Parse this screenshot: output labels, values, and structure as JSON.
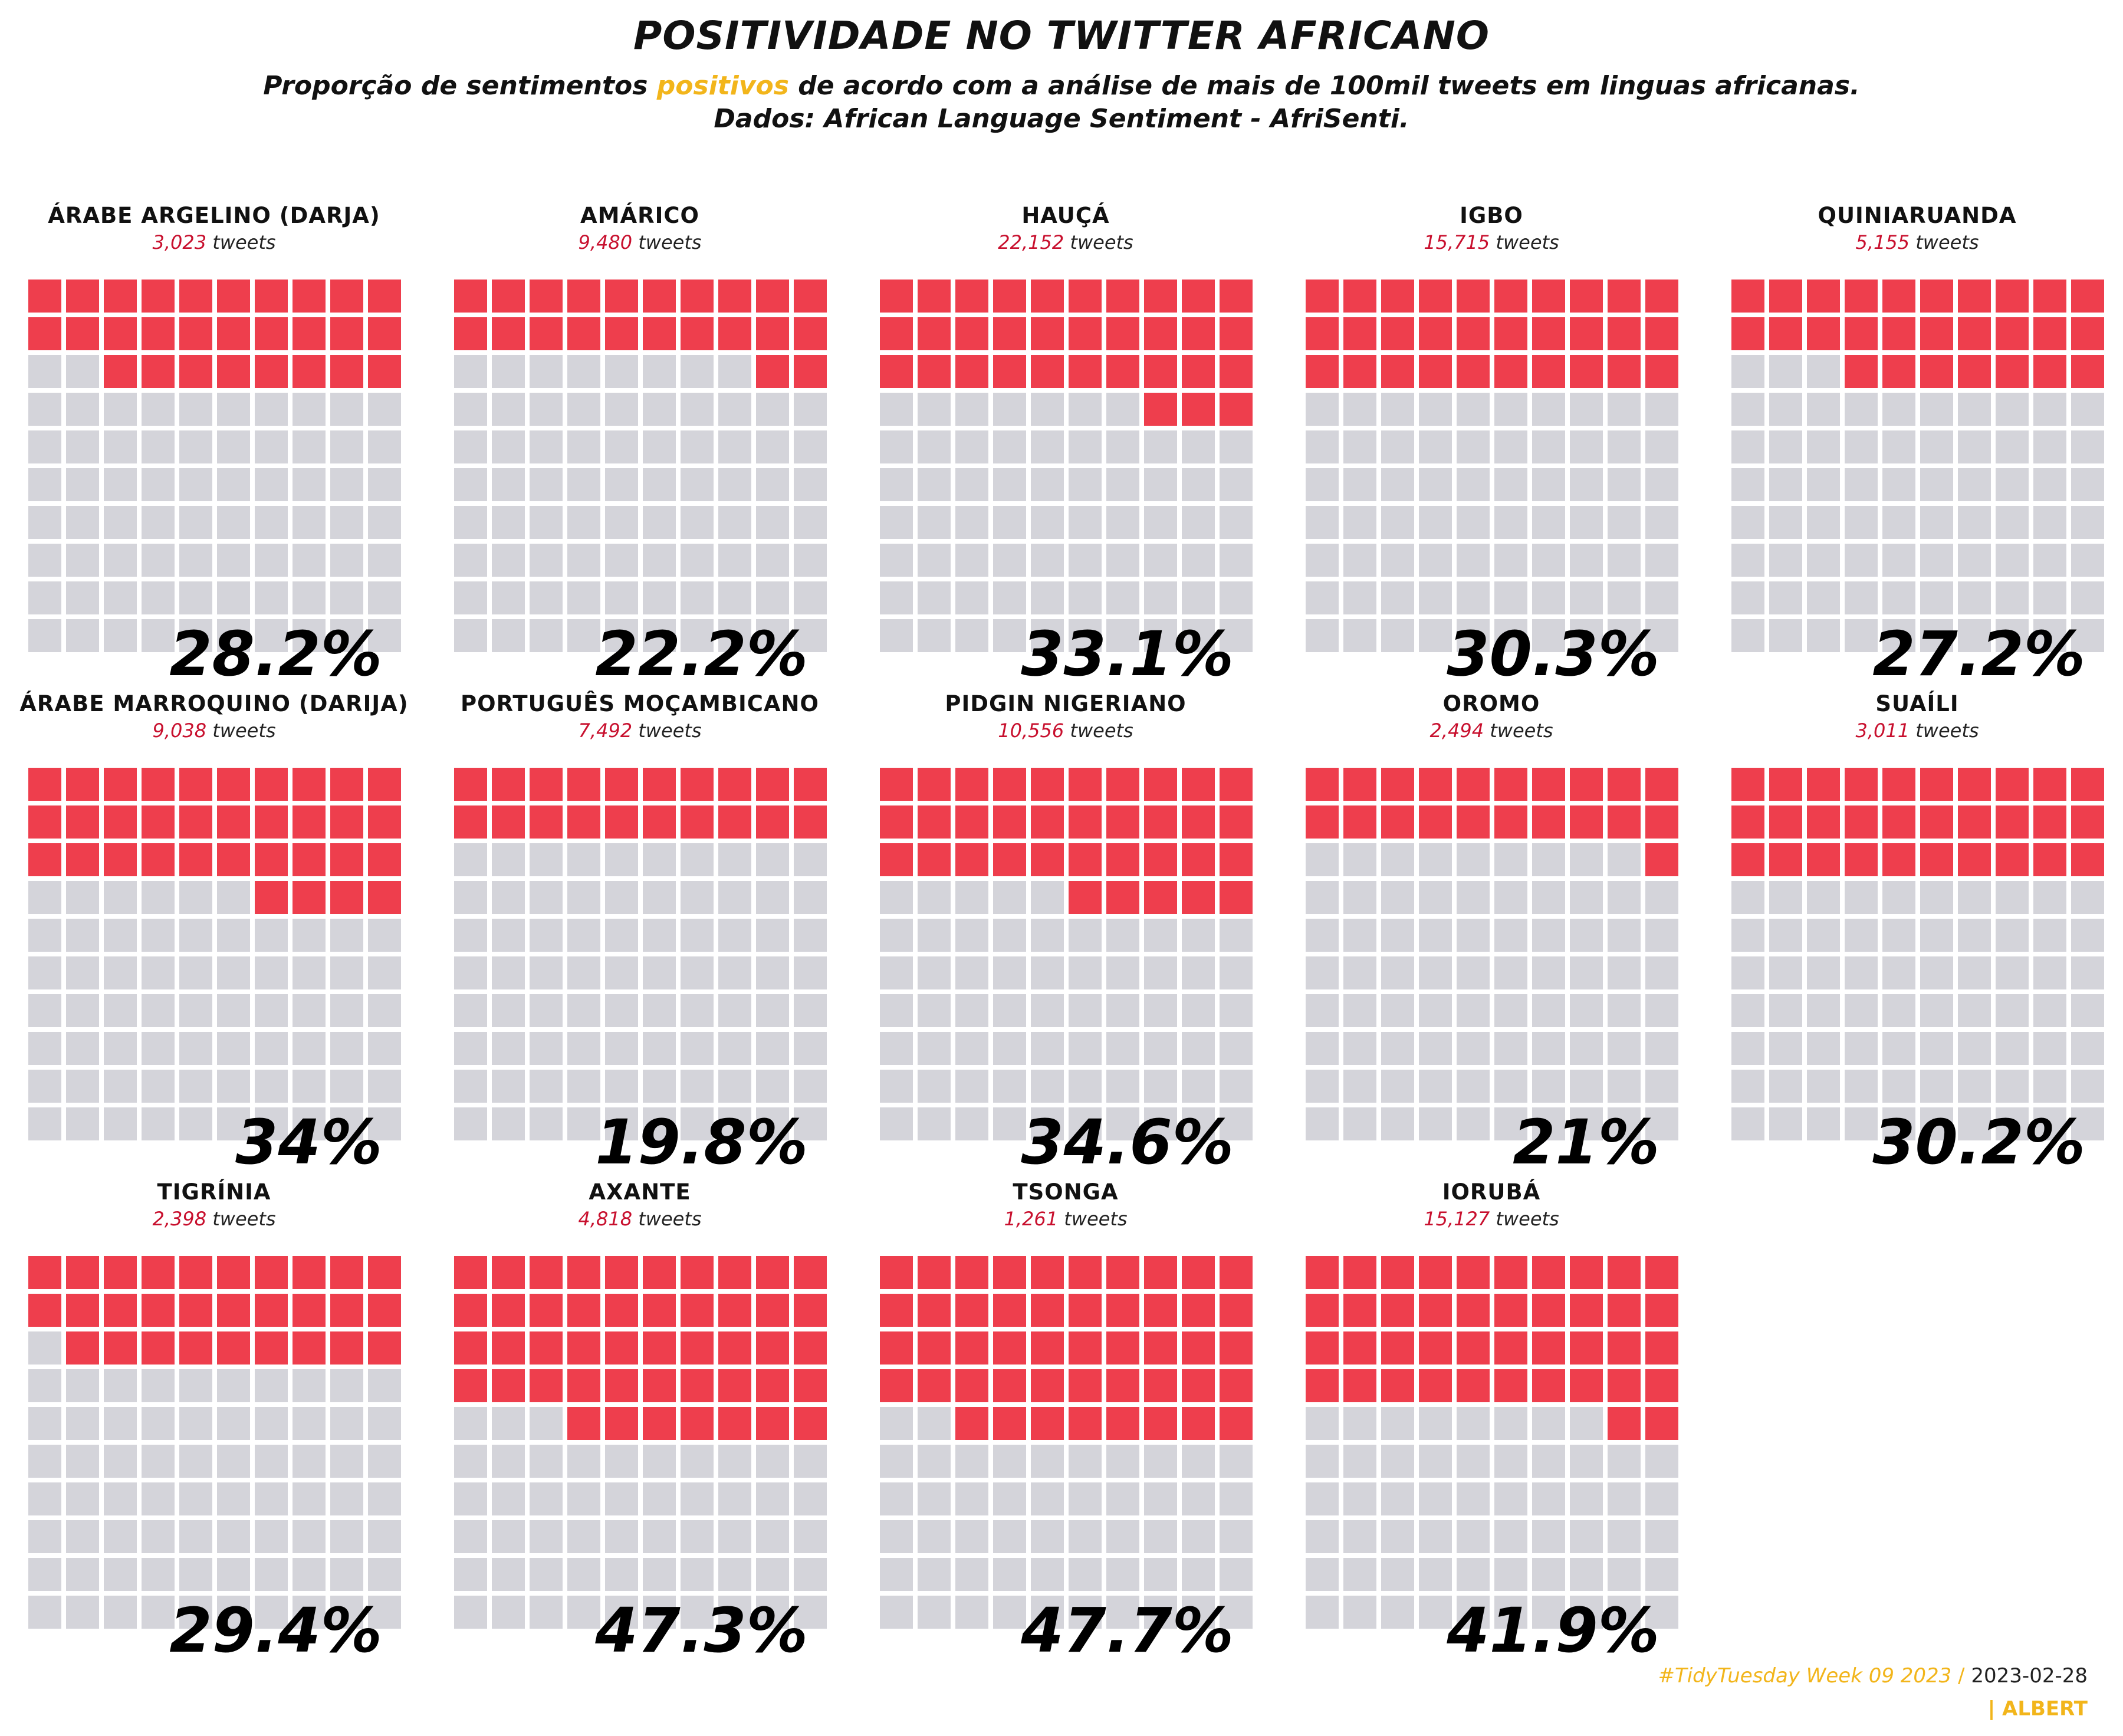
{
  "title": "POSITIVIDADE NO TWITTER AFRICANO",
  "subtitle": {
    "before": "Proporção de sentimentos ",
    "highlight": "positivos",
    "after": " de acordo com a análise de mais de 100mil tweets em linguas africanas.",
    "line2": "Dados: African Language Sentiment - AfriSenti."
  },
  "colors": {
    "positive": "#ee3e4d",
    "other": "#d4d4da",
    "highlight": "#f2b51b",
    "count": "#c8102e"
  },
  "tweets_unit": "tweets",
  "footer": {
    "hashtag": "#TidyTuesday Week 09 2023",
    "separator": "/",
    "date": "2023-02-28",
    "author": "| ALBERT"
  },
  "chart_data": {
    "type": "waffle",
    "grid": "10x10",
    "panels": [
      {
        "language": "ÁRABE ARGELINO (DARJA)",
        "tweets": "3,023",
        "percent_label": "28.2%",
        "positive_cells": 28
      },
      {
        "language": "AMÁRICO",
        "tweets": "9,480",
        "percent_label": "22.2%",
        "positive_cells": 22
      },
      {
        "language": "HAUÇÁ",
        "tweets": "22,152",
        "percent_label": "33.1%",
        "positive_cells": 33
      },
      {
        "language": "IGBO",
        "tweets": "15,715",
        "percent_label": "30.3%",
        "positive_cells": 30
      },
      {
        "language": "QUINIARUANDA",
        "tweets": "5,155",
        "percent_label": "27.2%",
        "positive_cells": 27
      },
      {
        "language": "ÁRABE MARROQUINO (DARIJA)",
        "tweets": "9,038",
        "percent_label": "34%",
        "positive_cells": 34
      },
      {
        "language": "PORTUGUÊS MOÇAMBICANO",
        "tweets": "7,492",
        "percent_label": "19.8%",
        "positive_cells": 20
      },
      {
        "language": "PIDGIN NIGERIANO",
        "tweets": "10,556",
        "percent_label": "34.6%",
        "positive_cells": 35
      },
      {
        "language": "OROMO",
        "tweets": "2,494",
        "percent_label": "21%",
        "positive_cells": 21
      },
      {
        "language": "SUAÍLI",
        "tweets": "3,011",
        "percent_label": "30.2%",
        "positive_cells": 30
      },
      {
        "language": "TIGRÍNIA",
        "tweets": "2,398",
        "percent_label": "29.4%",
        "positive_cells": 29
      },
      {
        "language": "AXANTE",
        "tweets": "4,818",
        "percent_label": "47.3%",
        "positive_cells": 47
      },
      {
        "language": "TSONGA",
        "tweets": "1,261",
        "percent_label": "47.7%",
        "positive_cells": 48
      },
      {
        "language": "IORUBÁ",
        "tweets": "15,127",
        "percent_label": "41.9%",
        "positive_cells": 42
      }
    ]
  }
}
